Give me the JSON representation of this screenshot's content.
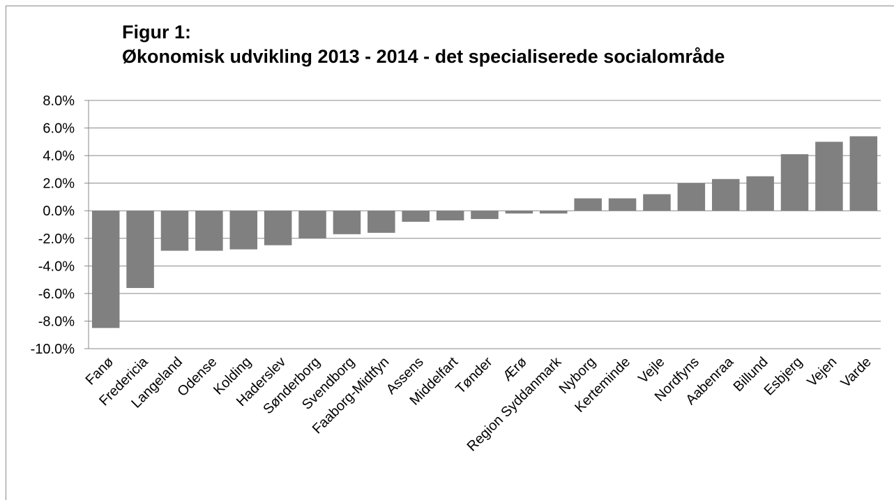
{
  "chart_data": {
    "type": "bar",
    "title": "Figur 1:",
    "subtitle": "Økonomisk udvikling 2013 - 2014 - det specialiserede socialområde",
    "categories": [
      "Fanø",
      "Fredericia",
      "Langeland",
      "Odense",
      "Kolding",
      "Haderslev",
      "Sønderborg",
      "Svendborg",
      "Faaborg-Midtfyn",
      "Assens",
      "Middelfart",
      "Tønder",
      "Ærø",
      "Region Syddanmark",
      "Nyborg",
      "Kerteminde",
      "Vejle",
      "Nordfyns",
      "Aabenraa",
      "Billund",
      "Esbjerg",
      "Vejen",
      "Varde"
    ],
    "values": [
      -8.5,
      -5.6,
      -2.9,
      -2.9,
      -2.8,
      -2.5,
      -2.0,
      -1.7,
      -1.6,
      -0.8,
      -0.7,
      -0.6,
      -0.2,
      -0.2,
      0.9,
      0.9,
      1.2,
      2.0,
      2.3,
      2.5,
      4.1,
      5.0,
      5.4
    ],
    "color": "#808080",
    "ylim": [
      -10,
      8
    ],
    "yticks": [
      {
        "value": -10,
        "label": "-10.0%"
      },
      {
        "value": -8,
        "label": "-8.0%"
      },
      {
        "value": -6,
        "label": "-6.0%"
      },
      {
        "value": -4,
        "label": "-4.0%"
      },
      {
        "value": -2,
        "label": "-2.0%"
      },
      {
        "value": 0,
        "label": "0.0%"
      },
      {
        "value": 2,
        "label": "2.0%"
      },
      {
        "value": 4,
        "label": "4.0%"
      },
      {
        "value": 6,
        "label": "6.0%"
      },
      {
        "value": 8,
        "label": "8.0%"
      }
    ],
    "grid": true
  }
}
